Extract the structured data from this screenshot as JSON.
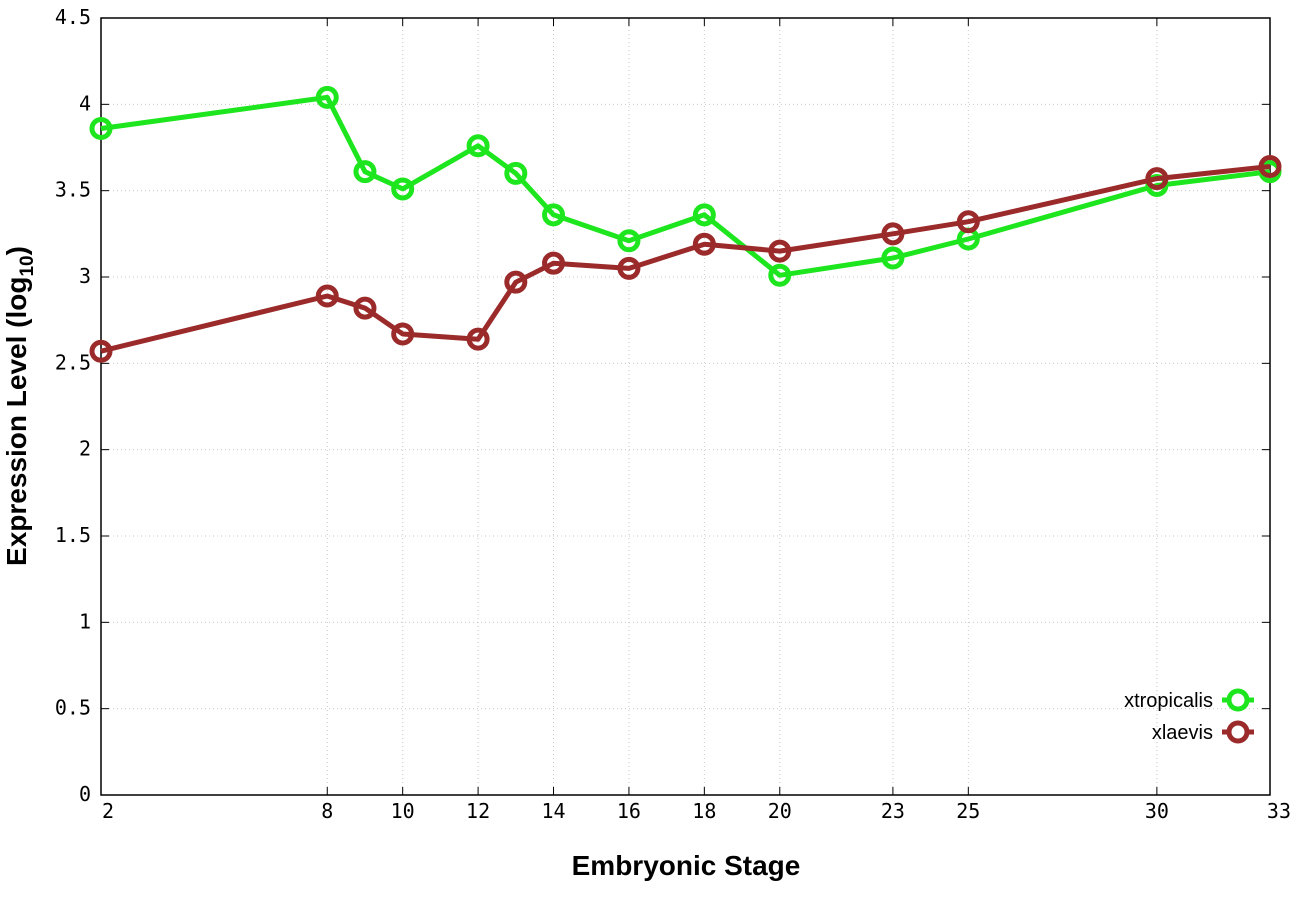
{
  "chart_data": {
    "type": "line",
    "xlabel": "Embryonic Stage",
    "ylabel_main": "Expression Level (log",
    "ylabel_sub": "10",
    "ylabel_close": ")",
    "xlim": [
      2,
      33
    ],
    "ylim": [
      0,
      4.5
    ],
    "x_ticks": [
      2,
      8,
      10,
      12,
      14,
      16,
      18,
      20,
      23,
      25,
      30,
      33
    ],
    "y_ticks": [
      "0",
      "0.5",
      "1",
      "1.5",
      "2",
      "2.5",
      "3",
      "3.5",
      "4",
      "4.5"
    ],
    "grid": true,
    "legend_position": "bottom-right",
    "series": [
      {
        "name": "xtropicalis",
        "color": "#1ee61e",
        "x": [
          2,
          8,
          9,
          10,
          12,
          13,
          14,
          16,
          18,
          20,
          23,
          25,
          30,
          33
        ],
        "y": [
          3.86,
          4.04,
          3.61,
          3.51,
          3.76,
          3.6,
          3.36,
          3.21,
          3.36,
          3.01,
          3.11,
          3.22,
          3.53,
          3.61
        ]
      },
      {
        "name": "xlaevis",
        "color": "#9b2a2a",
        "x": [
          2,
          8,
          9,
          10,
          12,
          13,
          14,
          16,
          18,
          20,
          23,
          25,
          30,
          33
        ],
        "y": [
          2.57,
          2.89,
          2.82,
          2.67,
          2.64,
          2.97,
          3.08,
          3.05,
          3.19,
          3.15,
          3.25,
          3.32,
          3.57,
          3.64
        ]
      }
    ]
  }
}
